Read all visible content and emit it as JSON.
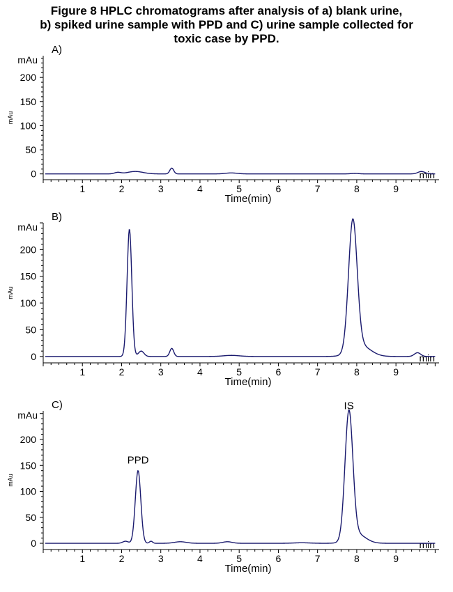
{
  "figure": {
    "title_lines": [
      "Figure 8 HPLC chromatograms after analysis of a) blank urine,",
      "b) spiked urine sample with PPD and C) urine sample collected for",
      "toxic case by PPD."
    ]
  },
  "colors": {
    "trace": "#1a1a6e",
    "axis": "#000000"
  },
  "chart_data": [
    {
      "type": "line",
      "panel_label": "A)",
      "ylabel": "mAu",
      "y_unit_label": "mAu",
      "xlabel": "Time(min)",
      "x_unit_label": "min",
      "xlim": [
        0,
        10.1
      ],
      "ylim": [
        -12,
        245
      ],
      "x_ticks": [
        1,
        2,
        3,
        4,
        5,
        6,
        7,
        8,
        9
      ],
      "y_ticks": [
        0,
        50,
        100,
        150,
        200
      ],
      "grid": false,
      "baseline": 0,
      "peaks": [
        {
          "x": 1.9,
          "height": 3,
          "width": 0.08
        },
        {
          "x": 2.35,
          "height": 5,
          "width": 0.2
        },
        {
          "x": 3.28,
          "height": 12,
          "width": 0.05
        },
        {
          "x": 4.8,
          "height": 2,
          "width": 0.15
        },
        {
          "x": 7.95,
          "height": 1,
          "width": 0.1
        },
        {
          "x": 9.65,
          "height": 5,
          "width": 0.09
        }
      ],
      "annotations": []
    },
    {
      "type": "line",
      "panel_label": "B)",
      "ylabel": "mAu",
      "y_unit_label": "mAu",
      "xlabel": "Time(min)",
      "x_unit_label": "min",
      "xlim": [
        0,
        10.1
      ],
      "ylim": [
        -12,
        250
      ],
      "x_ticks": [
        1,
        2,
        3,
        4,
        5,
        6,
        7,
        8,
        9
      ],
      "y_ticks": [
        0,
        50,
        100,
        150,
        200
      ],
      "grid": false,
      "baseline": 0,
      "peaks": [
        {
          "x": 2.2,
          "height": 238,
          "width": 0.06
        },
        {
          "x": 2.5,
          "height": 10,
          "width": 0.07
        },
        {
          "x": 3.28,
          "height": 15,
          "width": 0.05
        },
        {
          "x": 4.8,
          "height": 2,
          "width": 0.2
        },
        {
          "x": 7.9,
          "height": 243,
          "width": 0.11
        },
        {
          "x": 8.1,
          "height": 20,
          "width": 0.25
        },
        {
          "x": 9.55,
          "height": 7,
          "width": 0.08
        }
      ],
      "annotations": []
    },
    {
      "type": "line",
      "panel_label": "C)",
      "ylabel": "mAu",
      "y_unit_label": "mAu",
      "xlabel": "Time(min)",
      "x_unit_label": "min",
      "xlim": [
        0,
        10.1
      ],
      "ylim": [
        -12,
        255
      ],
      "x_ticks": [
        1,
        2,
        3,
        4,
        5,
        6,
        7,
        8,
        9
      ],
      "y_ticks": [
        0,
        50,
        100,
        150,
        200
      ],
      "grid": false,
      "baseline": 0,
      "peaks": [
        {
          "x": 2.1,
          "height": 4,
          "width": 0.07
        },
        {
          "x": 2.42,
          "height": 140,
          "width": 0.07
        },
        {
          "x": 2.75,
          "height": 4,
          "width": 0.04
        },
        {
          "x": 3.5,
          "height": 3,
          "width": 0.15
        },
        {
          "x": 4.7,
          "height": 3,
          "width": 0.12
        },
        {
          "x": 6.6,
          "height": 1,
          "width": 0.2
        },
        {
          "x": 7.8,
          "height": 245,
          "width": 0.1
        },
        {
          "x": 8.0,
          "height": 18,
          "width": 0.22
        }
      ],
      "annotations": [
        {
          "text": "PPD",
          "x": 2.42,
          "y": 140
        },
        {
          "text": "IS",
          "x": 7.8,
          "y": 245
        }
      ]
    }
  ]
}
